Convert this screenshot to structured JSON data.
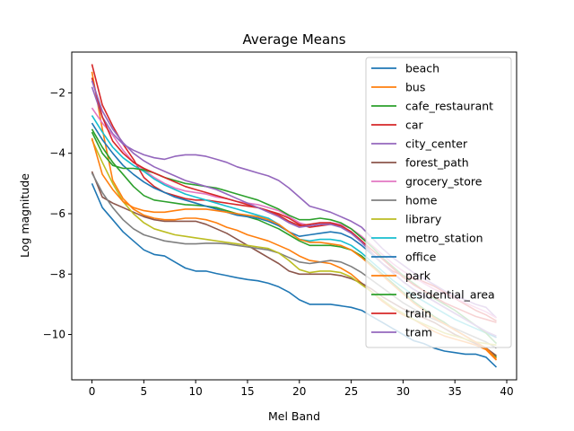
{
  "chart_data": {
    "type": "line",
    "title": "Average Means",
    "xlabel": "Mel Band",
    "ylabel": "Log magnitude",
    "xlim": [
      -1.95,
      40.95
    ],
    "ylim": [
      -11.5,
      -0.65
    ],
    "xticks": [
      0,
      5,
      10,
      15,
      20,
      25,
      30,
      35,
      40
    ],
    "yticks": [
      -2,
      -4,
      -6,
      -8,
      -10
    ],
    "grid": false,
    "legend_position": "upper right",
    "x": [
      0,
      1,
      2,
      3,
      4,
      5,
      6,
      7,
      8,
      9,
      10,
      11,
      12,
      13,
      14,
      15,
      16,
      17,
      18,
      19,
      20,
      21,
      22,
      23,
      24,
      25,
      26,
      27,
      28,
      29,
      30,
      31,
      32,
      33,
      34,
      35,
      36,
      37,
      38,
      39
    ],
    "series": [
      {
        "name": "beach",
        "color": "#1f77b4",
        "values": [
          -5.0,
          -5.8,
          -6.2,
          -6.6,
          -6.9,
          -7.2,
          -7.35,
          -7.4,
          -7.6,
          -7.8,
          -7.9,
          -7.9,
          -7.98,
          -8.05,
          -8.12,
          -8.18,
          -8.22,
          -8.3,
          -8.42,
          -8.6,
          -8.85,
          -9.0,
          -9.0,
          -9.0,
          -9.05,
          -9.1,
          -9.2,
          -9.4,
          -9.6,
          -9.8,
          -10.0,
          -10.2,
          -10.3,
          -10.45,
          -10.55,
          -10.6,
          -10.65,
          -10.65,
          -10.75,
          -11.08
        ]
      },
      {
        "name": "bus",
        "color": "#ff7f0e",
        "values": [
          -1.3,
          -3.2,
          -4.9,
          -5.5,
          -5.85,
          -6.05,
          -6.15,
          -6.2,
          -6.2,
          -6.15,
          -6.15,
          -6.2,
          -6.3,
          -6.45,
          -6.55,
          -6.7,
          -6.8,
          -6.9,
          -7.05,
          -7.2,
          -7.4,
          -7.55,
          -7.6,
          -7.65,
          -7.8,
          -8.0,
          -8.3,
          -8.6,
          -8.9,
          -9.15,
          -9.35,
          -9.5,
          -9.7,
          -9.9,
          -10.05,
          -10.15,
          -10.25,
          -10.35,
          -10.5,
          -10.85
        ]
      },
      {
        "name": "cafe_restaurant",
        "color": "#2ca02c",
        "values": [
          -3.2,
          -3.8,
          -4.3,
          -4.7,
          -5.1,
          -5.4,
          -5.55,
          -5.6,
          -5.65,
          -5.7,
          -5.72,
          -5.75,
          -5.8,
          -5.9,
          -6.0,
          -6.1,
          -6.2,
          -6.35,
          -6.5,
          -6.7,
          -6.9,
          -7.05,
          -7.05,
          -7.05,
          -7.1,
          -7.2,
          -7.4,
          -7.7,
          -8.0,
          -8.3,
          -8.6,
          -8.9,
          -9.15,
          -9.4,
          -9.6,
          -9.85,
          -10.05,
          -10.25,
          -10.45,
          -10.75
        ]
      },
      {
        "name": "car",
        "color": "#d62728",
        "values": [
          -1.05,
          -2.4,
          -3.1,
          -3.7,
          -4.2,
          -4.8,
          -5.1,
          -5.3,
          -5.4,
          -5.5,
          -5.55,
          -5.55,
          -5.6,
          -5.65,
          -5.7,
          -5.75,
          -5.8,
          -5.9,
          -6.0,
          -6.15,
          -6.35,
          -6.45,
          -6.4,
          -6.35,
          -6.4,
          -6.6,
          -6.9,
          -7.3,
          -7.65,
          -7.9,
          -8.05,
          -8.15,
          -8.25,
          -8.4,
          -8.6,
          -8.8,
          -9.0,
          -9.2,
          -9.35,
          -9.55
        ]
      },
      {
        "name": "city_center",
        "color": "#9467bd",
        "values": [
          -1.8,
          -2.8,
          -3.35,
          -3.7,
          -3.9,
          -4.05,
          -4.15,
          -4.2,
          -4.1,
          -4.05,
          -4.05,
          -4.1,
          -4.2,
          -4.3,
          -4.45,
          -4.55,
          -4.65,
          -4.75,
          -4.9,
          -5.15,
          -5.45,
          -5.75,
          -5.85,
          -5.95,
          -6.1,
          -6.25,
          -6.45,
          -6.8,
          -7.15,
          -7.45,
          -7.7,
          -7.95,
          -8.15,
          -8.35,
          -8.55,
          -8.7,
          -8.85,
          -9.0,
          -9.1,
          -9.45
        ]
      },
      {
        "name": "forest_path",
        "color": "#8c564b",
        "values": [
          -4.6,
          -5.45,
          -5.65,
          -5.8,
          -5.95,
          -6.1,
          -6.2,
          -6.25,
          -6.25,
          -6.25,
          -6.25,
          -6.35,
          -6.5,
          -6.65,
          -6.85,
          -7.05,
          -7.25,
          -7.45,
          -7.65,
          -7.9,
          -8.0,
          -8.0,
          -8.0,
          -8.0,
          -8.05,
          -8.15,
          -8.3,
          -8.5,
          -8.75,
          -8.95,
          -9.15,
          -9.3,
          -9.45,
          -9.6,
          -9.8,
          -10.0,
          -10.15,
          -10.3,
          -10.45,
          -10.7
        ]
      },
      {
        "name": "grocery_store",
        "color": "#e377c2",
        "values": [
          -2.5,
          -3.0,
          -3.4,
          -3.9,
          -4.3,
          -4.55,
          -4.8,
          -5.0,
          -5.15,
          -5.25,
          -5.3,
          -5.35,
          -5.45,
          -5.5,
          -5.6,
          -5.65,
          -5.7,
          -5.8,
          -5.9,
          -6.1,
          -6.3,
          -6.4,
          -6.35,
          -6.3,
          -6.35,
          -6.5,
          -6.75,
          -7.05,
          -7.35,
          -7.65,
          -7.9,
          -8.1,
          -8.3,
          -8.5,
          -8.65,
          -8.8,
          -8.95,
          -9.1,
          -9.25,
          -9.45
        ]
      },
      {
        "name": "home",
        "color": "#7f7f7f",
        "values": [
          -4.65,
          -5.3,
          -5.8,
          -6.2,
          -6.5,
          -6.7,
          -6.8,
          -6.9,
          -6.95,
          -7.0,
          -7.0,
          -6.98,
          -6.98,
          -7.0,
          -7.05,
          -7.1,
          -7.15,
          -7.2,
          -7.3,
          -7.45,
          -7.6,
          -7.65,
          -7.6,
          -7.55,
          -7.6,
          -7.75,
          -7.95,
          -8.2,
          -8.45,
          -8.7,
          -8.95,
          -9.15,
          -9.35,
          -9.5,
          -9.65,
          -9.8,
          -9.95,
          -10.1,
          -10.25,
          -10.45
        ]
      },
      {
        "name": "library",
        "color": "#bcbd22",
        "values": [
          -3.55,
          -4.3,
          -5.0,
          -5.6,
          -6.0,
          -6.3,
          -6.5,
          -6.6,
          -6.7,
          -6.75,
          -6.8,
          -6.85,
          -6.9,
          -6.95,
          -7.0,
          -7.05,
          -7.1,
          -7.15,
          -7.3,
          -7.55,
          -7.85,
          -7.95,
          -7.9,
          -7.9,
          -7.95,
          -8.1,
          -8.35,
          -8.6,
          -8.85,
          -9.1,
          -9.3,
          -9.5,
          -9.65,
          -9.8,
          -9.95,
          -10.05,
          -10.15,
          -10.25,
          -10.3,
          -10.35
        ]
      },
      {
        "name": "metro_station",
        "color": "#17becf",
        "values": [
          -2.75,
          -3.3,
          -3.8,
          -4.15,
          -4.4,
          -4.6,
          -4.85,
          -5.05,
          -5.2,
          -5.35,
          -5.45,
          -5.55,
          -5.65,
          -5.75,
          -5.85,
          -5.95,
          -6.05,
          -6.15,
          -6.35,
          -6.6,
          -6.85,
          -6.9,
          -6.85,
          -6.85,
          -6.9,
          -7.05,
          -7.3,
          -7.6,
          -7.9,
          -8.2,
          -8.45,
          -8.7,
          -8.9,
          -9.1,
          -9.3,
          -9.5,
          -9.65,
          -9.8,
          -9.95,
          -10.1
        ]
      },
      {
        "name": "office",
        "color": "#1f77b4",
        "values": [
          -3.0,
          -3.55,
          -4.0,
          -4.4,
          -4.7,
          -4.95,
          -5.15,
          -5.3,
          -5.45,
          -5.55,
          -5.65,
          -5.75,
          -5.85,
          -5.95,
          -6.05,
          -6.1,
          -6.15,
          -6.25,
          -6.4,
          -6.6,
          -6.75,
          -6.7,
          -6.65,
          -6.6,
          -6.65,
          -6.8,
          -7.05,
          -7.35,
          -7.65,
          -7.95,
          -8.25,
          -8.5,
          -8.7,
          -8.9,
          -9.1,
          -9.3,
          -9.5,
          -9.7,
          -9.9,
          -10.1
        ]
      },
      {
        "name": "park",
        "color": "#ff7f0e",
        "values": [
          -3.5,
          -4.7,
          -5.2,
          -5.6,
          -5.8,
          -5.9,
          -5.95,
          -5.95,
          -5.9,
          -5.85,
          -5.85,
          -5.85,
          -5.9,
          -5.95,
          -6.0,
          -6.05,
          -6.1,
          -6.2,
          -6.35,
          -6.6,
          -6.85,
          -6.95,
          -6.95,
          -7.0,
          -7.05,
          -7.2,
          -7.45,
          -7.75,
          -8.05,
          -8.35,
          -8.65,
          -8.95,
          -9.2,
          -9.45,
          -9.65,
          -9.85,
          -10.05,
          -10.25,
          -10.45,
          -10.8
        ]
      },
      {
        "name": "residential_area",
        "color": "#2ca02c",
        "values": [
          -3.3,
          -4.0,
          -4.4,
          -4.5,
          -4.5,
          -4.55,
          -4.65,
          -4.8,
          -4.9,
          -5.0,
          -5.05,
          -5.1,
          -5.15,
          -5.25,
          -5.35,
          -5.45,
          -5.55,
          -5.7,
          -5.85,
          -6.05,
          -6.2,
          -6.2,
          -6.15,
          -6.2,
          -6.3,
          -6.5,
          -6.8,
          -7.1,
          -7.45,
          -7.75,
          -8.05,
          -8.3,
          -8.55,
          -8.8,
          -9.0,
          -9.2,
          -9.45,
          -9.7,
          -9.95,
          -10.3
        ]
      },
      {
        "name": "train",
        "color": "#d62728",
        "values": [
          -1.5,
          -2.8,
          -3.6,
          -4.0,
          -4.3,
          -4.5,
          -4.65,
          -4.8,
          -4.95,
          -5.1,
          -5.2,
          -5.3,
          -5.4,
          -5.5,
          -5.6,
          -5.7,
          -5.8,
          -5.9,
          -6.05,
          -6.25,
          -6.4,
          -6.35,
          -6.3,
          -6.3,
          -6.4,
          -6.6,
          -6.9,
          -7.2,
          -7.5,
          -7.8,
          -8.1,
          -8.35,
          -8.55,
          -8.75,
          -8.95,
          -9.1,
          -9.25,
          -9.4,
          -9.5,
          -9.6
        ]
      },
      {
        "name": "tram",
        "color": "#9467bd",
        "values": [
          -1.6,
          -2.6,
          -3.2,
          -3.65,
          -4.0,
          -4.25,
          -4.45,
          -4.6,
          -4.75,
          -4.9,
          -5.0,
          -5.1,
          -5.2,
          -5.35,
          -5.5,
          -5.65,
          -5.8,
          -5.95,
          -6.1,
          -6.3,
          -6.45,
          -6.4,
          -6.35,
          -6.35,
          -6.45,
          -6.65,
          -6.95,
          -7.3,
          -7.65,
          -7.95,
          -8.25,
          -8.5,
          -8.7,
          -8.9,
          -9.1,
          -9.3,
          -9.5,
          -9.7,
          -9.9,
          -10.05
        ]
      }
    ]
  }
}
